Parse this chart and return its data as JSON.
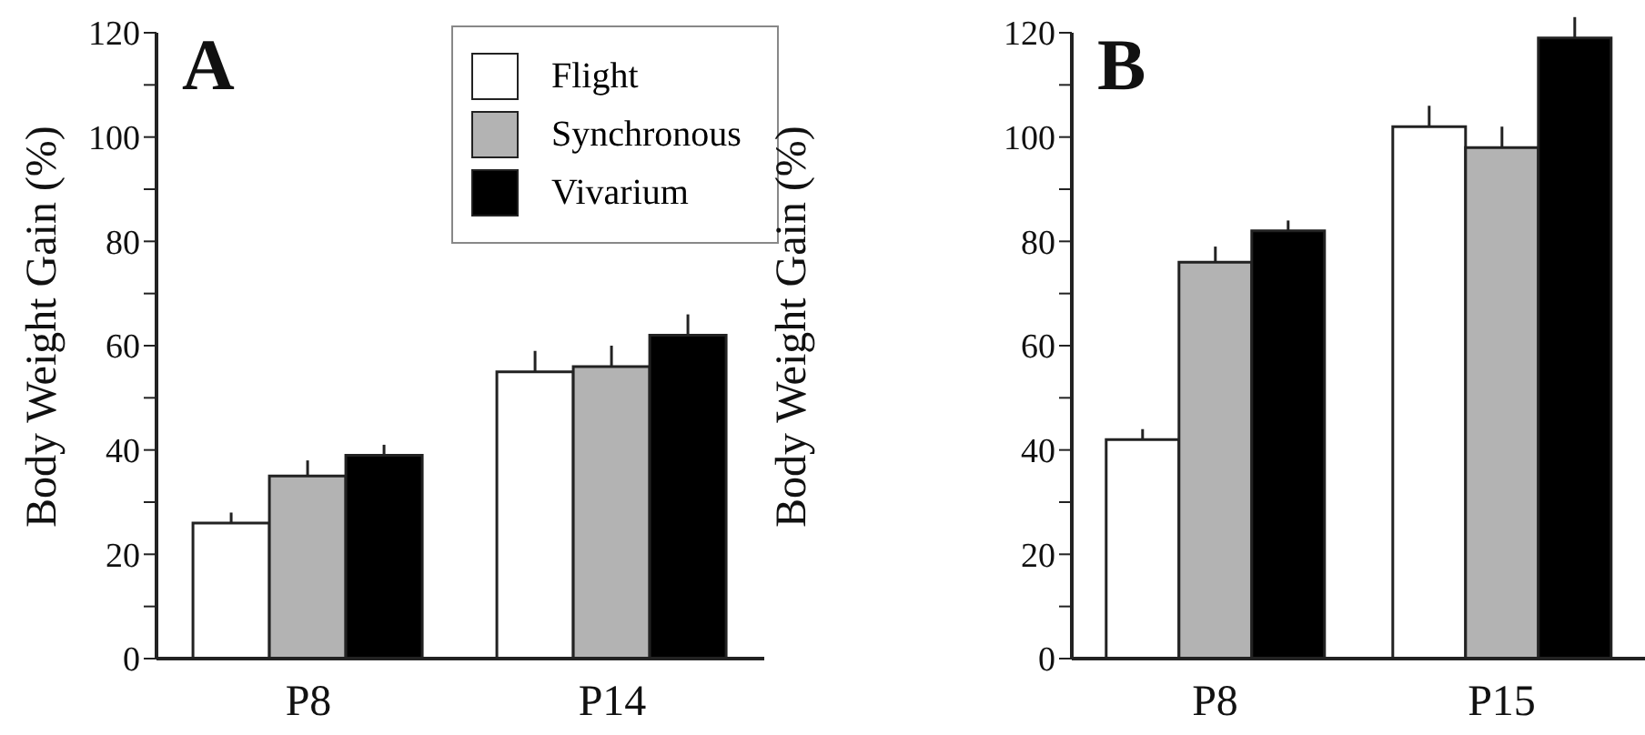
{
  "chart_data": [
    {
      "type": "bar",
      "title": "A",
      "ylabel": "Body Weight Gain (%)",
      "categories": [
        "P8",
        "P14"
      ],
      "series": [
        {
          "name": "Flight",
          "color": "#ffffff",
          "values": [
            26,
            55
          ],
          "errors": [
            [
              26,
              28
            ],
            [
              55,
              59
            ]
          ]
        },
        {
          "name": "Synchronous",
          "color": "#b3b3b3",
          "values": [
            35,
            56
          ],
          "errors": [
            [
              35,
              38
            ],
            [
              56,
              60
            ]
          ]
        },
        {
          "name": "Vivarium",
          "color": "#000000",
          "values": [
            39,
            62
          ],
          "errors": [
            [
              39,
              41
            ],
            [
              62,
              66
            ]
          ]
        }
      ],
      "ylim": [
        0,
        120
      ],
      "yticks": [
        0,
        {
          "value": 10,
          "label": null
        },
        20,
        {
          "value": 30,
          "label": null
        },
        40,
        {
          "value": 50,
          "label": null
        },
        60,
        {
          "value": 70,
          "label": null
        },
        80,
        {
          "value": 90,
          "label": null
        },
        100,
        {
          "value": 110,
          "label": null
        },
        120
      ],
      "grid": false,
      "legend": "top right"
    },
    {
      "type": "bar",
      "title": "B",
      "ylabel": "Body Weight Gain (%)",
      "categories": [
        "P8",
        "P15"
      ],
      "series": [
        {
          "color": "#ffffff",
          "values": [
            42,
            102
          ],
          "errors": [
            [
              42,
              44
            ],
            [
              102,
              106
            ]
          ]
        },
        {
          "color": "#b3b3b3",
          "values": [
            76,
            98
          ],
          "errors": [
            [
              76,
              79
            ],
            [
              98,
              102
            ]
          ]
        },
        {
          "color": "#000000",
          "values": [
            82,
            119
          ],
          "errors": [
            [
              82,
              84
            ],
            [
              119,
              123
            ]
          ]
        }
      ],
      "ylim": [
        0,
        120
      ],
      "yticks": [
        0,
        {
          "value": 10,
          "label": null
        },
        20,
        {
          "value": 30,
          "label": null
        },
        40,
        {
          "value": 50,
          "label": null
        },
        60,
        {
          "value": 70,
          "label": null
        },
        80,
        {
          "value": 90,
          "label": null
        },
        100,
        {
          "value": 110,
          "label": null
        },
        120
      ],
      "grid": false,
      "legend": false
    }
  ]
}
